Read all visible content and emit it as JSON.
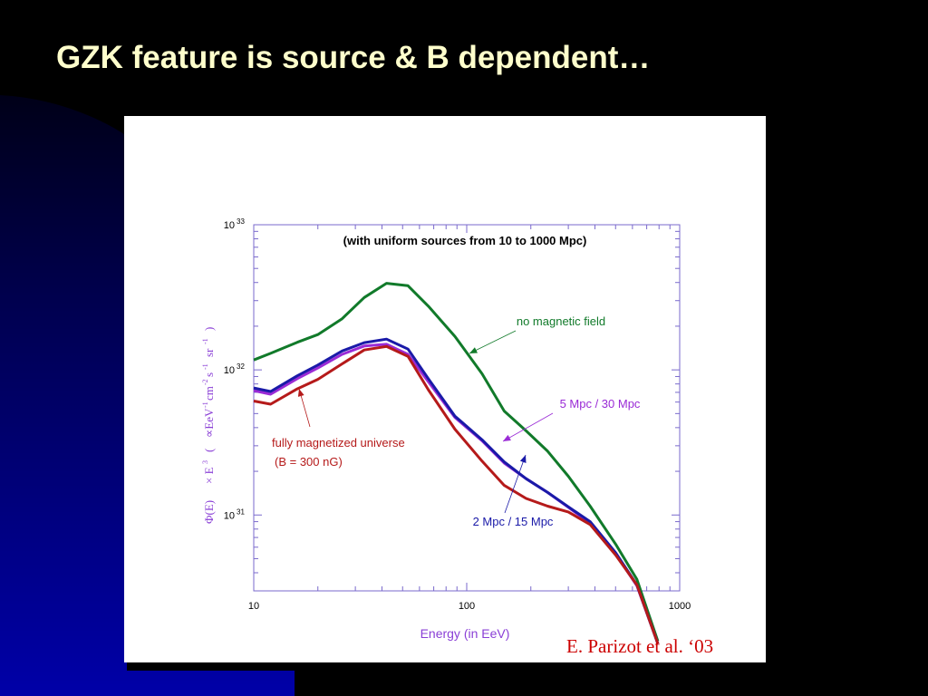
{
  "slide": {
    "title": "GZK feature is source & B dependent…",
    "citation": "E. Parizot et al. ‘03"
  },
  "colors": {
    "background": "#000000",
    "accent_gradient": "#0000a0",
    "title": "#ffffcc",
    "green": "#117a2a",
    "purple": "#9a2bd6",
    "blue": "#1a1aa8",
    "red": "#b51a1a",
    "axis": "#7a6acc",
    "citation": "#cc0000"
  },
  "chart_data": {
    "type": "line",
    "title": "(with uniform sources from 10 to 1000 Mpc)",
    "xlabel": "Energy (in EeV)",
    "ylabel": {
      "phi": "Φ(E)",
      "times": "× E",
      "times_exp": "3",
      "paren_open": "(",
      "units": "∝EeV",
      "units_exp": "-1",
      "cm": "cm",
      "cm_exp": "-2",
      "s": "s",
      "s_exp": "-1",
      "sr": "sr",
      "sr_exp": "-1",
      "paren_close": ")"
    },
    "xscale": "log",
    "yscale": "log",
    "xlim": [
      10,
      1000
    ],
    "ylim": [
      3e+30,
      1e+33
    ],
    "x_ticks": [
      {
        "value": 10,
        "label": "10"
      },
      {
        "value": 100,
        "label": "100"
      },
      {
        "value": 1000,
        "label": "1000"
      }
    ],
    "y_ticks": [
      {
        "value": 1e+31,
        "base": "10",
        "exp": "31"
      },
      {
        "value": 1e+32,
        "base": "10",
        "exp": "32"
      },
      {
        "value": 1e+33,
        "base": "10",
        "exp": "33"
      }
    ],
    "series": [
      {
        "name": "no magnetic field",
        "color": "#117a2a",
        "x": [
          10,
          12,
          16,
          20,
          26,
          33,
          42,
          53,
          66,
          88,
          118,
          150,
          190,
          240,
          300,
          380,
          500,
          630,
          790
        ],
        "y": [
          1.17e+32,
          1.3e+32,
          1.55e+32,
          1.75e+32,
          2.25e+32,
          3.15e+32,
          3.95e+32,
          3.8e+32,
          2.75e+32,
          1.7e+32,
          9.4e+31,
          5.2e+31,
          3.8e+31,
          2.75e+31,
          1.85e+31,
          1.15e+31,
          6.3e+30,
          3.6e+30,
          1.35e+30
        ]
      },
      {
        "name": "5 Mpc / 30 Mpc",
        "color": "#9a2bd6",
        "x": [
          10,
          12,
          16,
          20,
          26,
          33,
          42,
          53,
          66,
          88,
          118,
          150,
          190,
          240,
          300,
          380,
          500,
          630,
          790
        ],
        "y": [
          7.2e+31,
          6.8e+31,
          8.7e+31,
          1.03e+32,
          1.28e+32,
          1.46e+32,
          1.5e+32,
          1.28e+32,
          8.3e+31,
          4.7e+31,
          3.25e+31,
          2.28e+31,
          1.78e+31,
          1.43e+31,
          1.13e+31,
          8.8e+30,
          5.4e+30,
          3.25e+30,
          1.3e+30
        ]
      },
      {
        "name": "2 Mpc / 15 Mpc",
        "color": "#1a1aa8",
        "x": [
          10,
          12,
          16,
          20,
          26,
          33,
          42,
          53,
          66,
          88,
          118,
          150,
          190,
          240,
          300,
          380,
          500,
          630,
          790
        ],
        "y": [
          7.5e+31,
          7.1e+31,
          9.1e+31,
          1.08e+32,
          1.35e+32,
          1.54e+32,
          1.63e+32,
          1.39e+32,
          8.7e+31,
          4.8e+31,
          3.3e+31,
          2.32e+31,
          1.78e+31,
          1.43e+31,
          1.14e+31,
          9e+30,
          5.5e+30,
          3.3e+30,
          1.3e+30
        ]
      },
      {
        "name": "fully magnetized universe",
        "color": "#b51a1a",
        "x": [
          10,
          12,
          16,
          20,
          26,
          33,
          42,
          53,
          66,
          88,
          118,
          150,
          190,
          240,
          300,
          380,
          500,
          630,
          790
        ],
        "y": [
          6.1e+31,
          5.8e+31,
          7.4e+31,
          8.6e+31,
          1.1e+32,
          1.37e+32,
          1.45e+32,
          1.24e+32,
          7.3e+31,
          3.9e+31,
          2.35e+31,
          1.6e+31,
          1.3e+31,
          1.15e+31,
          1.05e+31,
          8.6e+30,
          5.3e+30,
          3.3e+30,
          1.3e+30
        ]
      }
    ],
    "annotations": [
      {
        "text": "no magnetic field",
        "color": "#117a2a"
      },
      {
        "text": "5 Mpc / 30 Mpc",
        "color": "#9a2bd6"
      },
      {
        "text": "fully magnetized universe",
        "color": "#b51a1a"
      },
      {
        "text": "(B = 300 nG)",
        "color": "#b51a1a"
      },
      {
        "text": "2 Mpc / 15 Mpc",
        "color": "#1a1aa8"
      }
    ]
  }
}
